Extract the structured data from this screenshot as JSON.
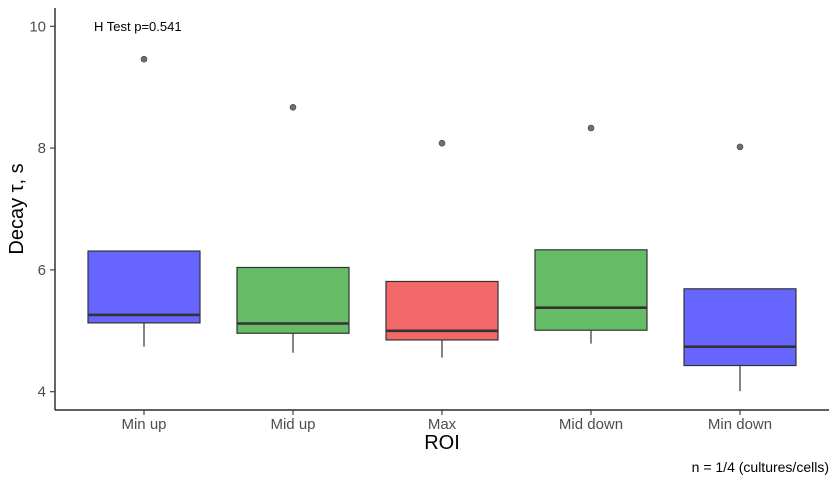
{
  "chart_data": {
    "type": "boxplot",
    "xlabel": "ROI",
    "ylabel": "Decay τ, s",
    "ylim": [
      3.7,
      10.3
    ],
    "yticks": [
      4,
      6,
      8,
      10
    ],
    "grid": false,
    "legend": "none",
    "annotation": "H Test p=0.541",
    "caption": "n = 1/4 (cultures/cells)",
    "categories": [
      "Min up",
      "Mid up",
      "Max",
      "Mid down",
      "Min down"
    ],
    "boxes": [
      {
        "category": "Min up",
        "color": "#6666ff",
        "whisker_low": 4.74,
        "q1": 5.13,
        "median": 5.26,
        "q3": 6.31,
        "outliers": [
          9.46
        ]
      },
      {
        "category": "Mid up",
        "color": "#66bb66",
        "whisker_low": 4.64,
        "q1": 4.96,
        "median": 5.12,
        "q3": 6.04,
        "outliers": [
          8.67
        ]
      },
      {
        "category": "Max",
        "color": "#f36868",
        "whisker_low": 4.56,
        "q1": 4.85,
        "median": 5.0,
        "q3": 5.81,
        "outliers": [
          8.08
        ]
      },
      {
        "category": "Mid down",
        "color": "#66bb66",
        "whisker_low": 4.79,
        "q1": 5.01,
        "median": 5.38,
        "q3": 6.33,
        "outliers": [
          8.33
        ]
      },
      {
        "category": "Min down",
        "color": "#6666ff",
        "whisker_low": 4.01,
        "q1": 4.43,
        "median": 4.74,
        "q3": 5.69,
        "outliers": [
          8.02
        ]
      }
    ]
  }
}
